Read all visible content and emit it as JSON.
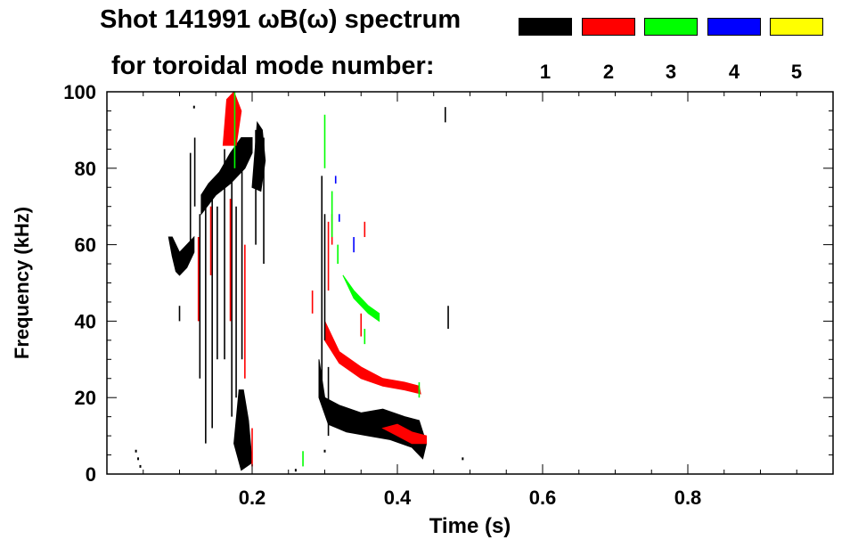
{
  "title_line1": "Shot 141991 ωB(ω) spectrum",
  "title_line2": "for toroidal mode number:",
  "legend": [
    {
      "label": "1",
      "color": "#000000"
    },
    {
      "label": "2",
      "color": "#ff0000"
    },
    {
      "label": "3",
      "color": "#00ff00"
    },
    {
      "label": "4",
      "color": "#0000ff"
    },
    {
      "label": "5",
      "color": "#ffff00"
    }
  ],
  "chart_data": {
    "type": "spectrogram",
    "xlabel": "Time (s)",
    "ylabel": "Frequency (kHz)",
    "xlim": [
      0.0,
      1.0
    ],
    "ylim": [
      0,
      100
    ],
    "xticks": [
      {
        "value": 0.2,
        "label": "0.2"
      },
      {
        "value": 0.4,
        "label": "0.4"
      },
      {
        "value": 0.6,
        "label": "0.6"
      },
      {
        "value": 0.8,
        "label": "0.8"
      }
    ],
    "yticks": [
      {
        "value": 0,
        "label": "0"
      },
      {
        "value": 20,
        "label": "20"
      },
      {
        "value": 40,
        "label": "40"
      },
      {
        "value": 60,
        "label": "60"
      },
      {
        "value": 80,
        "label": "80"
      },
      {
        "value": 100,
        "label": "100"
      }
    ],
    "grid": false,
    "regions": [
      {
        "mode": 1,
        "points": [
          [
            0.085,
            62
          ],
          [
            0.09,
            57
          ],
          [
            0.095,
            53
          ],
          [
            0.1,
            52
          ],
          [
            0.11,
            54
          ],
          [
            0.12,
            58
          ],
          [
            0.12,
            62
          ],
          [
            0.11,
            60
          ],
          [
            0.1,
            58
          ],
          [
            0.09,
            62
          ]
        ]
      },
      {
        "mode": 1,
        "points": [
          [
            0.13,
            68
          ],
          [
            0.15,
            73
          ],
          [
            0.17,
            76
          ],
          [
            0.19,
            80
          ],
          [
            0.2,
            84
          ],
          [
            0.2,
            88
          ],
          [
            0.185,
            88
          ],
          [
            0.17,
            84
          ],
          [
            0.155,
            79
          ],
          [
            0.14,
            76
          ],
          [
            0.13,
            73
          ]
        ]
      },
      {
        "mode": 1,
        "points": [
          [
            0.2,
            75
          ],
          [
            0.207,
            92
          ],
          [
            0.214,
            90
          ],
          [
            0.218,
            82
          ],
          [
            0.212,
            74
          ]
        ]
      },
      {
        "mode": 1,
        "points": [
          [
            0.175,
            8
          ],
          [
            0.182,
            22
          ],
          [
            0.188,
            22
          ],
          [
            0.195,
            14
          ],
          [
            0.2,
            3
          ],
          [
            0.185,
            1
          ]
        ]
      },
      {
        "mode": 1,
        "points": [
          [
            0.292,
            30
          ],
          [
            0.3,
            20
          ],
          [
            0.32,
            18
          ],
          [
            0.35,
            16
          ],
          [
            0.38,
            17
          ],
          [
            0.41,
            15
          ],
          [
            0.43,
            14
          ],
          [
            0.44,
            8
          ],
          [
            0.435,
            4
          ],
          [
            0.42,
            7
          ],
          [
            0.39,
            9
          ],
          [
            0.36,
            10
          ],
          [
            0.33,
            11
          ],
          [
            0.305,
            13
          ],
          [
            0.292,
            20
          ]
        ]
      },
      {
        "mode": 2,
        "points": [
          [
            0.16,
            86
          ],
          [
            0.165,
            98
          ],
          [
            0.175,
            100
          ],
          [
            0.185,
            95
          ],
          [
            0.178,
            86
          ]
        ]
      },
      {
        "mode": 2,
        "points": [
          [
            0.3,
            40
          ],
          [
            0.32,
            32
          ],
          [
            0.35,
            28
          ],
          [
            0.38,
            25
          ],
          [
            0.41,
            24
          ],
          [
            0.43,
            23
          ],
          [
            0.432,
            21
          ],
          [
            0.41,
            22
          ],
          [
            0.38,
            23
          ],
          [
            0.35,
            25
          ],
          [
            0.32,
            29
          ],
          [
            0.3,
            35
          ]
        ]
      },
      {
        "mode": 2,
        "points": [
          [
            0.38,
            12
          ],
          [
            0.4,
            10
          ],
          [
            0.42,
            8
          ],
          [
            0.44,
            8
          ],
          [
            0.44,
            10
          ],
          [
            0.42,
            11
          ],
          [
            0.4,
            13
          ]
        ]
      },
      {
        "mode": 3,
        "points": [
          [
            0.325,
            52
          ],
          [
            0.34,
            46
          ],
          [
            0.36,
            42
          ],
          [
            0.375,
            40
          ],
          [
            0.375,
            42
          ],
          [
            0.36,
            44
          ],
          [
            0.34,
            48
          ]
        ]
      }
    ],
    "streaks": [
      {
        "mode": 1,
        "t": 0.115,
        "f": [
          60,
          84
        ]
      },
      {
        "mode": 1,
        "t": 0.121,
        "f": [
          70,
          88
        ]
      },
      {
        "mode": 1,
        "t": 0.128,
        "f": [
          25,
          68
        ]
      },
      {
        "mode": 1,
        "t": 0.136,
        "f": [
          8,
          70
        ]
      },
      {
        "mode": 1,
        "t": 0.145,
        "f": [
          12,
          72
        ]
      },
      {
        "mode": 1,
        "t": 0.152,
        "f": [
          30,
          70
        ]
      },
      {
        "mode": 1,
        "t": 0.162,
        "f": [
          30,
          85
        ]
      },
      {
        "mode": 1,
        "t": 0.172,
        "f": [
          15,
          82
        ]
      },
      {
        "mode": 1,
        "t": 0.178,
        "f": [
          20,
          70
        ]
      },
      {
        "mode": 1,
        "t": 0.186,
        "f": [
          30,
          88
        ]
      },
      {
        "mode": 1,
        "t": 0.205,
        "f": [
          60,
          90
        ]
      },
      {
        "mode": 1,
        "t": 0.216,
        "f": [
          55,
          88
        ]
      },
      {
        "mode": 1,
        "t": 0.1,
        "f": [
          40,
          44
        ]
      },
      {
        "mode": 1,
        "t": 0.296,
        "f": [
          20,
          78
        ]
      },
      {
        "mode": 1,
        "t": 0.3,
        "f": [
          35,
          68
        ]
      },
      {
        "mode": 1,
        "t": 0.305,
        "f": [
          10,
          28
        ]
      },
      {
        "mode": 1,
        "t": 0.47,
        "f": [
          38,
          44
        ]
      },
      {
        "mode": 1,
        "t": 0.466,
        "f": [
          92,
          96
        ]
      },
      {
        "mode": 2,
        "t": 0.126,
        "f": [
          40,
          62
        ]
      },
      {
        "mode": 2,
        "t": 0.143,
        "f": [
          52,
          70
        ]
      },
      {
        "mode": 2,
        "t": 0.17,
        "f": [
          40,
          72
        ]
      },
      {
        "mode": 2,
        "t": 0.19,
        "f": [
          25,
          60
        ]
      },
      {
        "mode": 2,
        "t": 0.2,
        "f": [
          2,
          12
        ]
      },
      {
        "mode": 2,
        "t": 0.283,
        "f": [
          42,
          48
        ]
      },
      {
        "mode": 2,
        "t": 0.305,
        "f": [
          48,
          66
        ]
      },
      {
        "mode": 2,
        "t": 0.31,
        "f": [
          60,
          68
        ]
      },
      {
        "mode": 2,
        "t": 0.35,
        "f": [
          36,
          42
        ]
      },
      {
        "mode": 2,
        "t": 0.355,
        "f": [
          62,
          66
        ]
      },
      {
        "mode": 3,
        "t": 0.176,
        "f": [
          80,
          100
        ]
      },
      {
        "mode": 3,
        "t": 0.3,
        "f": [
          80,
          94
        ]
      },
      {
        "mode": 3,
        "t": 0.31,
        "f": [
          62,
          74
        ]
      },
      {
        "mode": 3,
        "t": 0.318,
        "f": [
          55,
          60
        ]
      },
      {
        "mode": 3,
        "t": 0.355,
        "f": [
          34,
          38
        ]
      },
      {
        "mode": 3,
        "t": 0.27,
        "f": [
          2,
          6
        ]
      },
      {
        "mode": 3,
        "t": 0.43,
        "f": [
          20,
          24
        ]
      },
      {
        "mode": 4,
        "t": 0.315,
        "f": [
          76,
          78
        ]
      },
      {
        "mode": 4,
        "t": 0.32,
        "f": [
          66,
          68
        ]
      },
      {
        "mode": 4,
        "t": 0.34,
        "f": [
          58,
          62
        ]
      }
    ],
    "specks": [
      {
        "mode": 1,
        "t": 0.04,
        "f": 6
      },
      {
        "mode": 1,
        "t": 0.043,
        "f": 4
      },
      {
        "mode": 1,
        "t": 0.046,
        "f": 2
      },
      {
        "mode": 1,
        "t": 0.3,
        "f": 6
      },
      {
        "mode": 1,
        "t": 0.49,
        "f": 4
      },
      {
        "mode": 1,
        "t": 0.26,
        "f": 1
      },
      {
        "mode": 1,
        "t": 0.12,
        "f": 96
      }
    ]
  }
}
